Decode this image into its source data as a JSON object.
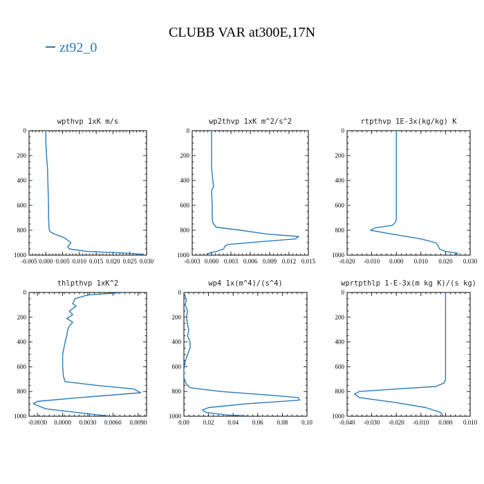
{
  "title": "CLUBB VAR at300E,17N",
  "legend": [
    {
      "name": "zt92_0",
      "color": "#2a7ab9"
    }
  ],
  "chart_data": [
    {
      "type": "line",
      "title": "wpthvp  1xK m/s",
      "xlim": [
        -0.005,
        0.03
      ],
      "ylim": [
        1000,
        0
      ],
      "xticks": [
        "-0.005",
        "0.000",
        "0.005",
        "0.010",
        "0.015",
        "0.020",
        "0.025",
        "0.030"
      ],
      "xtick_values": [
        -0.005,
        0.0,
        0.005,
        0.01,
        0.015,
        0.02,
        0.025,
        0.03
      ],
      "yticks": [
        "0",
        "200",
        "400",
        "600",
        "800",
        "1000"
      ],
      "series": [
        {
          "name": "zt92_0",
          "color": "#2a7ab9",
          "x": [
            0.0,
            0.0,
            0.0002,
            0.0005,
            0.0006,
            0.0007,
            0.0008,
            0.0008,
            0.0008,
            0.0009,
            0.0009,
            0.001,
            0.0012,
            0.0025,
            0.0055,
            0.0075,
            0.0065,
            0.007,
            0.012,
            0.025,
            0.029
          ],
          "y": [
            0,
            100,
            200,
            300,
            400,
            500,
            600,
            660,
            700,
            730,
            760,
            790,
            810,
            830,
            860,
            900,
            935,
            950,
            970,
            985,
            995
          ]
        }
      ]
    },
    {
      "type": "line",
      "title": "wp2thvp  1xK m^2/s^2",
      "xlim": [
        -0.003,
        0.015
      ],
      "ylim": [
        1000,
        0
      ],
      "xticks": [
        "-0.003",
        "0.000",
        "0.003",
        "0.006",
        "0.009",
        "0.012",
        "0.015"
      ],
      "xtick_values": [
        -0.003,
        0.0,
        0.003,
        0.006,
        0.009,
        0.012,
        0.015
      ],
      "yticks": [
        "0",
        "200",
        "400",
        "600",
        "800",
        "1000"
      ],
      "series": [
        {
          "name": "zt92_0",
          "color": "#2a7ab9",
          "x": [
            0.0,
            0.0,
            0.0,
            0.0,
            0.0003,
            0.0,
            0.0001,
            0.0001,
            0.0002,
            0.0007,
            0.0045,
            0.0085,
            0.0135,
            0.013,
            0.008,
            0.0025,
            0.002,
            0.0019,
            0.0008,
            -0.0008
          ],
          "y": [
            0,
            100,
            200,
            300,
            450,
            480,
            600,
            700,
            740,
            775,
            800,
            830,
            850,
            870,
            890,
            915,
            930,
            950,
            970,
            990
          ]
        }
      ]
    },
    {
      "type": "line",
      "title": "rtpthvp  1E-3x(kg/kg) K",
      "xlim": [
        -0.02,
        0.03
      ],
      "ylim": [
        1000,
        0
      ],
      "xticks": [
        "-0.020",
        "-0.010",
        "0.000",
        "0.010",
        "0.020",
        "0.030"
      ],
      "xtick_values": [
        -0.02,
        -0.01,
        0.0,
        0.01,
        0.02,
        0.03
      ],
      "yticks": [
        "0",
        "200",
        "400",
        "600",
        "800",
        "1000"
      ],
      "series": [
        {
          "name": "zt92_0",
          "color": "#2a7ab9",
          "x": [
            0.0,
            0.0,
            0.0,
            0.0,
            0.0,
            -0.0002,
            -0.0015,
            -0.0085,
            -0.0105,
            -0.002,
            0.01,
            0.016,
            0.017,
            0.0175,
            0.02,
            0.025,
            0.024
          ],
          "y": [
            0,
            200,
            400,
            600,
            700,
            730,
            760,
            780,
            800,
            830,
            870,
            900,
            925,
            950,
            970,
            985,
            995
          ]
        }
      ]
    },
    {
      "type": "line",
      "title": "thlpthvp  1xK^2",
      "xlim": [
        -0.004,
        0.01
      ],
      "ylim": [
        1000,
        0
      ],
      "xticks": [
        "-0.0030",
        "0.0000",
        "0.0030",
        "0.0060",
        "0.0090"
      ],
      "xtick_values": [
        -0.003,
        0.0,
        0.003,
        0.006,
        0.009
      ],
      "yticks": [
        "0",
        "200",
        "400",
        "600",
        "800",
        "1000"
      ],
      "series": [
        {
          "name": "zt92_0",
          "color": "#2a7ab9",
          "x": [
            0.0073,
            0.003,
            0.0015,
            0.0012,
            0.0016,
            0.0008,
            0.0012,
            0.0005,
            0.0012,
            0.0008,
            0.0006,
            0.0005,
            0.0003,
            0.0,
            0.0,
            0.0001,
            0.0003,
            0.004,
            0.0085,
            0.0093,
            0.002,
            -0.003,
            -0.0035,
            -0.002,
            0.003,
            0.0058
          ],
          "y": [
            0,
            20,
            50,
            90,
            110,
            150,
            180,
            210,
            240,
            270,
            300,
            350,
            400,
            500,
            600,
            680,
            720,
            750,
            780,
            810,
            850,
            880,
            900,
            940,
            980,
            1000
          ]
        }
      ]
    },
    {
      "type": "line",
      "title": "wp4  1x(m^4)/(s^4)",
      "xlim": [
        0.0,
        0.1
      ],
      "ylim": [
        1000,
        0
      ],
      "xticks": [
        "0.00",
        "0.02",
        "0.04",
        "0.06",
        "0.08",
        "0.10"
      ],
      "xtick_values": [
        0.0,
        0.02,
        0.04,
        0.06,
        0.08,
        0.1
      ],
      "yticks": [
        "0",
        "200",
        "400",
        "600",
        "800",
        "1000"
      ],
      "series": [
        {
          "name": "zt92_0",
          "color": "#2a7ab9",
          "x": [
            0.0,
            0.002,
            0.001,
            0.003,
            0.002,
            0.003,
            0.004,
            0.003,
            0.005,
            0.005,
            0.003,
            0.001,
            0.0,
            0.0,
            0.002,
            0.005,
            0.03,
            0.07,
            0.093,
            0.094,
            0.05,
            0.02,
            0.015,
            0.018,
            0.035,
            0.052
          ],
          "y": [
            0,
            60,
            100,
            150,
            200,
            260,
            300,
            350,
            400,
            450,
            500,
            560,
            620,
            700,
            740,
            770,
            800,
            830,
            850,
            870,
            900,
            930,
            950,
            970,
            990,
            998
          ]
        }
      ]
    },
    {
      "type": "line",
      "title": "wprtpthlp  1-E-3x(m kg K)/(s kg)",
      "xlim": [
        -0.04,
        0.01
      ],
      "ylim": [
        1000,
        0
      ],
      "xticks": [
        "-0.040",
        "-0.030",
        "-0.020",
        "-0.010",
        "0.000",
        "0.010"
      ],
      "xtick_values": [
        -0.04,
        -0.03,
        -0.02,
        -0.01,
        0.0,
        0.01
      ],
      "yticks": [
        "0",
        "200",
        "400",
        "600",
        "800",
        "1000"
      ],
      "series": [
        {
          "name": "zt92_0",
          "color": "#2a7ab9",
          "x": [
            0.0,
            0.0,
            0.0,
            0.0,
            0.0,
            -0.0005,
            -0.004,
            -0.02,
            -0.035,
            -0.037,
            -0.035,
            -0.02,
            -0.008,
            -0.002,
            -0.001
          ],
          "y": [
            0,
            200,
            400,
            600,
            700,
            730,
            760,
            780,
            800,
            820,
            850,
            890,
            930,
            970,
            995
          ]
        }
      ]
    }
  ]
}
